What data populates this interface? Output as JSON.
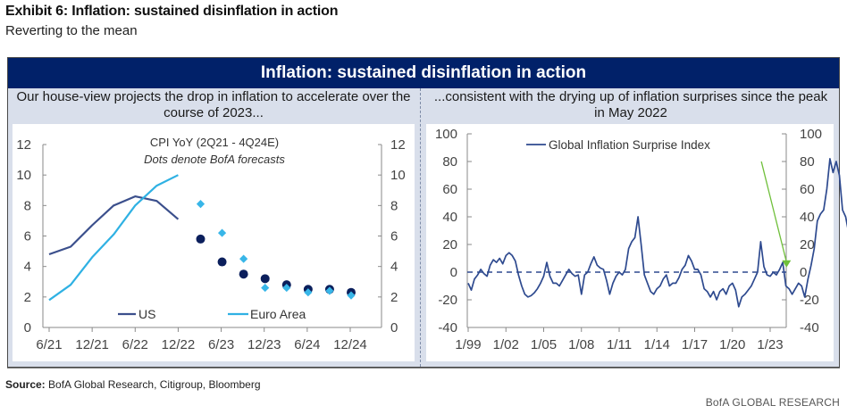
{
  "header": {
    "title": "Exhibit 6: Inflation: sustained disinflation in action",
    "subtitle": "Reverting to the mean"
  },
  "banner": "Inflation: sustained disinflation in action",
  "panels": {
    "left_heading": "Our house-view projects the drop in inflation to accelerate over the course of 2023...",
    "right_heading": "...consistent with the drying up of inflation surprises since the peak in May 2022"
  },
  "footer": {
    "source_label": "Source:",
    "source_text": "BofA Global Research, Citigroup, Bloomberg",
    "brand": "BofA GLOBAL RESEARCH"
  },
  "colors": {
    "banner": "#012169",
    "us": "#3b4f8c",
    "euro": "#2fb1e3",
    "us_dot": "#0b1f5c",
    "euro_dot": "#38b6e8",
    "surprise": "#2e4a8f",
    "arrow": "#6fbf3a"
  },
  "chart_data": [
    {
      "type": "line",
      "title": "CPI YoY (2Q21 - 4Q24E)",
      "subtitle": "Dots denote BofA forecasts",
      "xlabel": "",
      "ylabel": "",
      "x_ticks": [
        "6/21",
        "12/21",
        "6/22",
        "12/22",
        "6/23",
        "12/23",
        "6/24",
        "12/24"
      ],
      "ylim": [
        0,
        12
      ],
      "y_ticks": [
        0,
        2,
        4,
        6,
        8,
        10,
        12
      ],
      "y_right_ticks": [
        0,
        2,
        4,
        6,
        8,
        10,
        12
      ],
      "grid": false,
      "legend": "bottom",
      "series": [
        {
          "name": "US",
          "kind": "line",
          "x": [
            "6/21",
            "9/21",
            "12/21",
            "3/22",
            "6/22",
            "9/22",
            "12/22"
          ],
          "values": [
            4.8,
            5.3,
            6.7,
            8.0,
            8.6,
            8.3,
            7.1
          ]
        },
        {
          "name": "Euro Area",
          "kind": "line",
          "x": [
            "6/21",
            "9/21",
            "12/21",
            "3/22",
            "6/22",
            "9/22",
            "12/22"
          ],
          "values": [
            1.8,
            2.8,
            4.6,
            6.1,
            8.0,
            9.3,
            10.0
          ]
        },
        {
          "name": "US forecast",
          "kind": "dots",
          "x": [
            "3/23",
            "6/23",
            "9/23",
            "12/23",
            "3/24",
            "6/24",
            "9/24",
            "12/24"
          ],
          "values": [
            5.8,
            4.3,
            3.5,
            3.2,
            2.8,
            2.5,
            2.5,
            2.3
          ]
        },
        {
          "name": "Euro Area forecast",
          "kind": "diamonds",
          "x": [
            "3/23",
            "6/23",
            "9/23",
            "12/23",
            "3/24",
            "6/24",
            "9/24",
            "12/24"
          ],
          "values": [
            8.1,
            6.2,
            4.5,
            2.6,
            2.6,
            2.3,
            2.4,
            2.1
          ]
        }
      ]
    },
    {
      "type": "line",
      "title": "",
      "xlabel": "",
      "ylabel": "",
      "x_ticks": [
        "1/99",
        "1/02",
        "1/05",
        "1/08",
        "1/11",
        "1/14",
        "1/17",
        "1/20",
        "1/23"
      ],
      "ylim": [
        -40,
        100
      ],
      "y_ticks": [
        -40,
        -20,
        0,
        20,
        40,
        60,
        80,
        100
      ],
      "y_right_ticks": [
        -40,
        -20,
        0,
        20,
        40,
        60,
        80,
        100
      ],
      "grid": false,
      "legend": "top",
      "reference_line": 0,
      "annotation": "Arrow from peak (~80) down to ~5 indicating decline since May 2022",
      "series": [
        {
          "name": "Global Inflation Surprise Index",
          "x_start_year": 1999.0,
          "x_step_years": 0.25,
          "values": [
            -8,
            -13,
            -5,
            -2,
            2,
            -1,
            -3,
            5,
            9,
            7,
            10,
            6,
            12,
            14,
            12,
            8,
            -2,
            -10,
            -16,
            -18,
            -17,
            -15,
            -12,
            -8,
            -3,
            7,
            -3,
            -8,
            -8,
            -10,
            -6,
            -2,
            2,
            -1,
            -3,
            -2,
            -16,
            -2,
            0,
            6,
            11,
            5,
            3,
            2,
            -6,
            -16,
            -8,
            -3,
            0,
            -2,
            2,
            17,
            22,
            25,
            40,
            20,
            -2,
            -8,
            -14,
            -16,
            -12,
            -10,
            -5,
            -2,
            -10,
            -8,
            -8,
            -4,
            2,
            5,
            12,
            8,
            2,
            2,
            -2,
            -12,
            -14,
            -18,
            -14,
            -20,
            -14,
            -12,
            -16,
            -10,
            -8,
            -13,
            -25,
            -18,
            -16,
            -13,
            -10,
            -5,
            0,
            22,
            4,
            -2,
            -3,
            0,
            -2,
            2,
            7,
            -10,
            -12,
            -16,
            -12,
            -8,
            -10,
            -18,
            -5,
            5,
            17,
            37,
            42,
            45,
            60,
            82,
            72,
            80,
            70,
            45,
            40,
            28,
            20,
            5
          ]
        }
      ]
    }
  ]
}
